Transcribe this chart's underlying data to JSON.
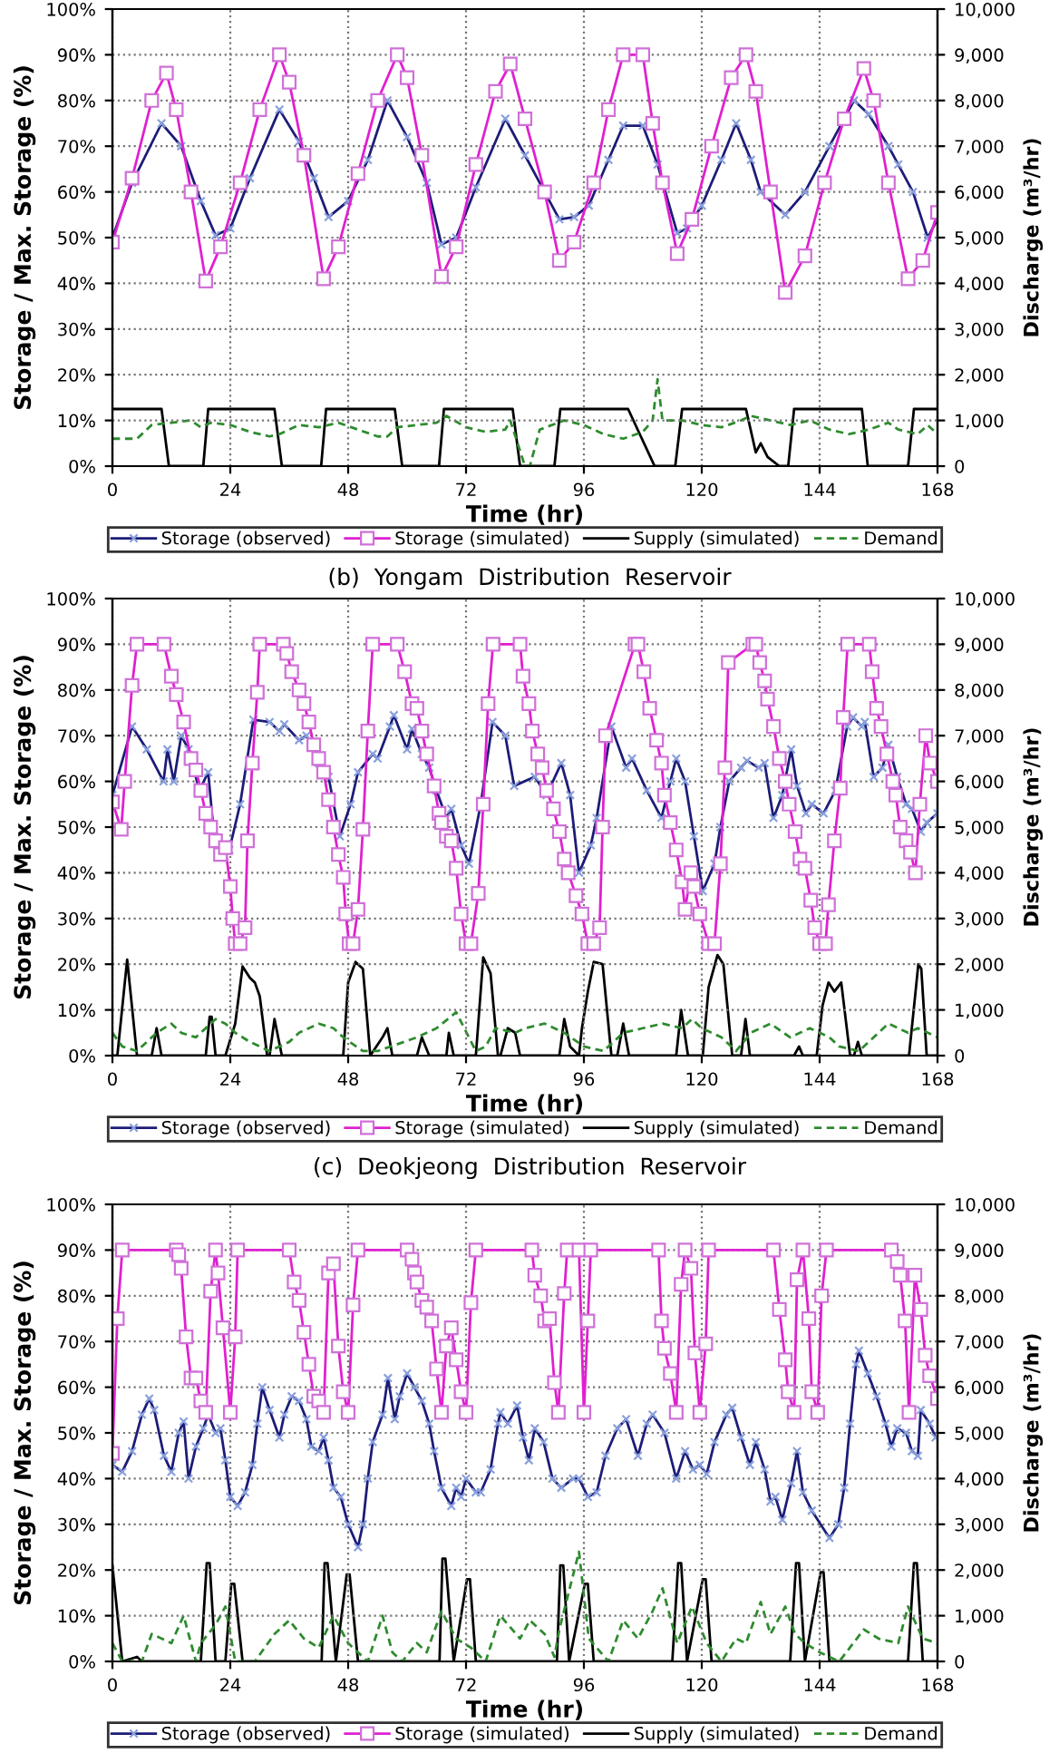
{
  "chart_data": [
    {
      "type": "line",
      "xlabel": "Time (hr)",
      "ylabel": "Storage / Max. Storage (%)",
      "y2label": "Discharge (m³/hr)",
      "xlim": [
        0,
        168
      ],
      "xticks": [
        0,
        24,
        48,
        72,
        96,
        120,
        144,
        168
      ],
      "ylim": [
        0,
        100
      ],
      "yticks": [
        {
          "value": 0,
          "label": "0%"
        },
        {
          "value": 10,
          "label": "10%"
        },
        {
          "value": 20,
          "label": "20%"
        },
        {
          "value": 30,
          "label": "30%"
        },
        {
          "value": 40,
          "label": "40%"
        },
        {
          "value": 50,
          "label": "50%"
        },
        {
          "value": 60,
          "label": "60%"
        },
        {
          "value": 70,
          "label": "70%"
        },
        {
          "value": 80,
          "label": "80%"
        },
        {
          "value": 90,
          "label": "90%"
        },
        {
          "value": 100,
          "label": "100%"
        }
      ],
      "y2lim": [
        0,
        10000
      ],
      "y2ticks": [
        0,
        {
          "value": 1000,
          "label": "1,000"
        },
        {
          "value": 2000,
          "label": "2,000"
        },
        {
          "value": 3000,
          "label": "3,000"
        },
        {
          "value": 4000,
          "label": "4,000"
        },
        {
          "value": 5000,
          "label": "5,000"
        },
        {
          "value": 6000,
          "label": "6,000"
        },
        {
          "value": 7000,
          "label": "7,000"
        },
        {
          "value": 8000,
          "label": "8,000"
        },
        {
          "value": 9000,
          "label": "9,000"
        },
        {
          "value": 10000,
          "label": "10,000"
        }
      ],
      "grid": true,
      "legend": "bottom",
      "annotations": [
        "(b)  Yongam  Distribution  Reservoir"
      ],
      "series": [
        {
          "name": "Storage (observed)",
          "color": "#1c1c78",
          "marker": "cross",
          "line_style": "solid",
          "x": [
            0,
            4,
            10,
            14,
            18,
            21,
            24,
            28,
            34,
            38,
            41,
            44,
            48,
            52,
            56,
            60,
            64,
            67,
            70,
            74,
            80,
            84,
            88,
            91,
            94,
            97,
            101,
            104,
            108,
            111,
            115,
            117,
            120,
            124,
            127,
            130,
            132,
            137,
            141,
            146,
            151,
            154,
            158,
            160,
            163,
            166,
            168
          ],
          "values": [
            50,
            62,
            75,
            70,
            58,
            50.5,
            52,
            63,
            78,
            71,
            63,
            54.5,
            58,
            67,
            80,
            72,
            62,
            48.5,
            50,
            61,
            76,
            68,
            60,
            54,
            54.5,
            57,
            67,
            74.5,
            74.5,
            66,
            51,
            52,
            57,
            67,
            75,
            67,
            60,
            55,
            60,
            70,
            80,
            77,
            70,
            66,
            60,
            50,
            54
          ]
        },
        {
          "name": "Storage (simulated)",
          "color": "#e020d0",
          "marker": "square",
          "line_style": "solid",
          "x": [
            0,
            4,
            8,
            11,
            13,
            16,
            19,
            22,
            26,
            30,
            34,
            36,
            39,
            43,
            46,
            50,
            54,
            58,
            60,
            63,
            67,
            70,
            74,
            78,
            81,
            84,
            88,
            91,
            94,
            98,
            101,
            104,
            108,
            110,
            112,
            115,
            118,
            122,
            126,
            129,
            131,
            134,
            137,
            141,
            145,
            149,
            153,
            155,
            158,
            162,
            165,
            168
          ],
          "values": [
            49,
            63,
            80,
            86,
            78,
            60,
            40.5,
            48,
            62,
            78,
            90,
            84,
            68,
            41,
            48,
            64,
            80,
            90,
            85,
            68,
            41.5,
            48,
            66,
            82,
            88,
            76,
            60,
            45,
            49,
            62,
            78,
            90,
            90,
            75,
            62,
            46.5,
            54,
            70,
            85,
            90,
            82,
            60,
            38,
            46,
            62,
            76,
            87,
            80,
            62,
            41,
            45,
            55.5
          ]
        },
        {
          "name": "Supply (simulated)",
          "color": "#000000",
          "marker": "none",
          "line_style": "solid",
          "axis": "y2",
          "x": [
            0,
            10,
            11.5,
            18.5,
            19.5,
            33,
            34.5,
            42.5,
            43.5,
            57.5,
            59,
            66.5,
            67.5,
            81.5,
            83,
            90,
            91.2,
            105,
            110.4,
            114.6,
            116,
            129,
            131,
            132,
            133.4,
            135.8,
            137.6,
            138.8,
            152.6,
            153.8,
            162,
            163.2,
            168
          ],
          "values": [
            1250,
            1250,
            0,
            0,
            1250,
            1250,
            0,
            0,
            1250,
            1250,
            0,
            0,
            1250,
            1250,
            0,
            0,
            1250,
            1250,
            0,
            0,
            1250,
            1250,
            300,
            500,
            200,
            0,
            0,
            1250,
            1250,
            0,
            0,
            1250,
            1250
          ]
        },
        {
          "name": "Demand",
          "color": "#2e8b2e",
          "marker": "none",
          "line_style": "dashed",
          "axis": "y2",
          "x": [
            0,
            5,
            8,
            12,
            16,
            18,
            20,
            24,
            28,
            32,
            34,
            38,
            42,
            46,
            50,
            54,
            56,
            58,
            62,
            66,
            68,
            72,
            76,
            80,
            81,
            84,
            85,
            87,
            92,
            96,
            100,
            104,
            108,
            110,
            111,
            112,
            116,
            120,
            124,
            128,
            130,
            134,
            138,
            142,
            146,
            150,
            154,
            158,
            160,
            164,
            166,
            168
          ],
          "values": [
            600,
            600,
            900,
            950,
            1000,
            850,
            950,
            900,
            750,
            650,
            700,
            900,
            850,
            950,
            800,
            650,
            650,
            850,
            900,
            950,
            1100,
            850,
            750,
            800,
            1000,
            0,
            0,
            800,
            1000,
            900,
            700,
            600,
            750,
            1000,
            1900,
            1000,
            1000,
            900,
            850,
            1000,
            1100,
            1000,
            900,
            1000,
            800,
            700,
            800,
            950,
            800,
            700,
            900,
            700
          ]
        }
      ]
    },
    {
      "type": "line",
      "xlabel": "Time (hr)",
      "ylabel": "Storage / Max. Storage (%)",
      "y2label": "Discharge (m³/hr)",
      "xlim": [
        0,
        168
      ],
      "xticks": [
        0,
        24,
        48,
        72,
        96,
        120,
        144,
        168
      ],
      "ylim": [
        0,
        100
      ],
      "yticks": [
        {
          "value": 0,
          "label": "0%"
        },
        {
          "value": 10,
          "label": "10%"
        },
        {
          "value": 20,
          "label": "20%"
        },
        {
          "value": 30,
          "label": "30%"
        },
        {
          "value": 40,
          "label": "40%"
        },
        {
          "value": 50,
          "label": "50%"
        },
        {
          "value": 60,
          "label": "60%"
        },
        {
          "value": 70,
          "label": "70%"
        },
        {
          "value": 80,
          "label": "80%"
        },
        {
          "value": 90,
          "label": "90%"
        },
        {
          "value": 100,
          "label": "100%"
        }
      ],
      "y2lim": [
        0,
        10000
      ],
      "y2ticks": [
        0,
        {
          "value": 1000,
          "label": "1,000"
        },
        {
          "value": 2000,
          "label": "2,000"
        },
        {
          "value": 3000,
          "label": "3,000"
        },
        {
          "value": 4000,
          "label": "4,000"
        },
        {
          "value": 5000,
          "label": "5,000"
        },
        {
          "value": 6000,
          "label": "6,000"
        },
        {
          "value": 7000,
          "label": "7,000"
        },
        {
          "value": 8000,
          "label": "8,000"
        },
        {
          "value": 9000,
          "label": "9,000"
        },
        {
          "value": 10000,
          "label": "10,000"
        }
      ],
      "grid": true,
      "legend": "bottom",
      "annotations": [
        "(c)  Deokjeong  Distribution  Reservoir"
      ],
      "series": [
        {
          "name": "Storage (observed)",
          "color": "#1c1c78",
          "marker": "cross",
          "line_style": "solid",
          "x": [
            0,
            4,
            7,
            10.4,
            11.2,
            12.5,
            14,
            15.5,
            17.7,
            19.5,
            20.7,
            23.8,
            26,
            28.7,
            32,
            34,
            35,
            38,
            39.5,
            42,
            44,
            46.3,
            48.5,
            50,
            53,
            54,
            56.5,
            57.3,
            60,
            61,
            63,
            64.5,
            66,
            68,
            69,
            71,
            72.6,
            75,
            77.4,
            80,
            81.8,
            86,
            88.4,
            91.4,
            93.2,
            95,
            97.4,
            98.6,
            101.6,
            104.6,
            105.8,
            108.8,
            111.8,
            113.6,
            114.8,
            116.6,
            118.4,
            120.2,
            122.6,
            123.8,
            125.6,
            128,
            129.2,
            131.6,
            132.8,
            134.6,
            136.4,
            138.2,
            139.4,
            141.2,
            142.4,
            144.8,
            147.2,
            149.6,
            150.8,
            152.6,
            153.2,
            155,
            156.8,
            158,
            159.8,
            161.6,
            162.8,
            164.6,
            165.8,
            168
          ],
          "values": [
            57,
            72,
            67,
            60,
            67,
            60,
            70,
            67,
            58,
            62,
            48,
            45,
            55,
            73.5,
            73,
            71,
            72.5,
            69,
            70,
            64,
            61,
            48,
            55,
            62,
            66,
            65,
            72,
            74.5,
            67,
            71.5,
            66,
            63,
            58,
            52,
            54,
            46,
            42,
            55,
            73,
            70,
            59,
            61,
            57,
            64,
            57,
            40,
            46,
            52,
            72,
            63,
            65,
            58,
            52,
            60,
            65,
            60,
            48,
            36,
            42,
            50,
            60,
            63,
            64.5,
            63,
            64,
            52,
            57,
            67,
            59,
            53,
            55,
            53,
            58,
            72,
            74,
            72,
            73,
            61,
            63,
            68,
            61,
            55,
            54,
            49,
            51,
            53
          ]
        },
        {
          "name": "Storage (simulated)",
          "color": "#e020d0",
          "marker": "square",
          "line_style": "solid",
          "x": [
            0,
            1.8,
            2.5,
            4,
            5,
            10.5,
            12,
            13,
            14.5,
            16,
            17,
            18,
            19,
            20,
            21,
            22,
            23,
            24,
            24.5,
            25,
            26,
            27,
            27.5,
            28.5,
            29.5,
            30,
            34.8,
            35.5,
            36.5,
            38,
            39,
            40,
            41,
            42,
            43,
            44,
            45,
            46,
            47,
            47.5,
            48.2,
            49,
            50,
            51,
            52,
            53,
            58,
            59.5,
            61,
            62,
            63,
            64,
            65.5,
            66.5,
            67,
            68,
            69,
            70,
            71,
            72,
            73,
            74.5,
            75.5,
            76.5,
            77.5,
            83,
            83.6,
            84.8,
            85.5,
            86.6,
            87.5,
            88.4,
            89.8,
            91,
            92,
            92.8,
            94.4,
            95.6,
            96.8,
            98,
            99.2,
            99.8,
            100.4,
            106.4,
            107,
            108.2,
            109.4,
            110.8,
            111.8,
            112.4,
            113.6,
            114.8,
            116,
            116.6,
            117.8,
            118.4,
            119.6,
            121.4,
            122.6,
            123.8,
            124.7,
            125.4,
            130.4,
            131,
            131.8,
            132.8,
            133.4,
            134.6,
            135.8,
            137,
            137.8,
            139,
            140,
            141,
            142.2,
            143,
            144,
            145.2,
            145.8,
            147,
            148.2,
            148.8,
            149.7,
            154.1,
            154.7,
            155.6,
            156.5,
            157.7,
            158.9,
            159.5,
            160.4,
            161.6,
            162.5,
            163.5,
            164.4,
            165.6,
            166.5,
            168
          ],
          "values": [
            55.5,
            49.5,
            60,
            81,
            90,
            90,
            83,
            79,
            73,
            65,
            62.5,
            58,
            53,
            50,
            47,
            44,
            45.5,
            37,
            30,
            24.5,
            24.5,
            28,
            47,
            64,
            79.5,
            90,
            90,
            88,
            84,
            80,
            77,
            73,
            68,
            65,
            62,
            56,
            50,
            44,
            39,
            31,
            24.5,
            24.5,
            32,
            49.5,
            71,
            90,
            90,
            84,
            77,
            76,
            71,
            66,
            59,
            53,
            51,
            48,
            47,
            41,
            31,
            24.5,
            24.5,
            35.5,
            55,
            77,
            90,
            90,
            83,
            77,
            71,
            66,
            63,
            58,
            54,
            49,
            43,
            40,
            35,
            31,
            24.5,
            24.5,
            28,
            50,
            70,
            90,
            90,
            84,
            76,
            69,
            64,
            57,
            51,
            45,
            38,
            32,
            40,
            37,
            31,
            24.5,
            24.5,
            42,
            63,
            86,
            90,
            90,
            86,
            82,
            78,
            72,
            65,
            60,
            55,
            49,
            43,
            41,
            34,
            28,
            24.5,
            24.5,
            33,
            47,
            58.5,
            74,
            90,
            90,
            84,
            76,
            72,
            66,
            60,
            57,
            50,
            47,
            44.5,
            40,
            55,
            70,
            64,
            60
          ]
        },
        {
          "name": "Supply (simulated)",
          "color": "#000000",
          "marker": "none",
          "line_style": "solid",
          "axis": "y2",
          "x": [
            0,
            1,
            3,
            5,
            8,
            9,
            10,
            19,
            19.8,
            20.2,
            21,
            23,
            25,
            26.5,
            28,
            29,
            30,
            31.5,
            32,
            33,
            34.5,
            47,
            48,
            49.5,
            51,
            52.5,
            55,
            56,
            57,
            62,
            63,
            64.5,
            68,
            68.5,
            69.5,
            74,
            75.5,
            77,
            78.5,
            79,
            80.5,
            82,
            83,
            91,
            92,
            93.2,
            95,
            95.6,
            96.8,
            98,
            99.8,
            101.6,
            102.8,
            104,
            105.2,
            114.8,
            115.8,
            117.2,
            120.2,
            121.4,
            123.2,
            124.4,
            126.2,
            128,
            128.9,
            129.8,
            138.8,
            139.8,
            140.6,
            143.4,
            144.6,
            145.8,
            147,
            148.4,
            150.2,
            151,
            151.8,
            152.6,
            162.2,
            164.1,
            164.7,
            165.8,
            168
          ],
          "values": [
            0,
            0,
            2100,
            0,
            0,
            600,
            0,
            0,
            850,
            850,
            0,
            0,
            700,
            1950,
            1700,
            1600,
            1300,
            0,
            0,
            800,
            0,
            0,
            1600,
            2050,
            1900,
            0,
            400,
            600,
            0,
            0,
            400,
            0,
            0,
            500,
            0,
            0,
            2150,
            1800,
            0,
            0,
            600,
            500,
            0,
            0,
            800,
            200,
            0,
            600,
            1400,
            2050,
            2000,
            0,
            0,
            700,
            0,
            0,
            1000,
            0,
            0,
            1500,
            2200,
            2000,
            0,
            0,
            800,
            0,
            0,
            200,
            0,
            0,
            1100,
            1600,
            1400,
            1600,
            0,
            0,
            300,
            0,
            0,
            2000,
            1900,
            0,
            0
          ]
        },
        {
          "name": "Demand",
          "color": "#2e8b2e",
          "marker": "none",
          "line_style": "dashed",
          "axis": "y2",
          "x": [
            0,
            2,
            5,
            7,
            9,
            12,
            14,
            17,
            21,
            23,
            25,
            28,
            32,
            36,
            38,
            42,
            45,
            47,
            51,
            54,
            62,
            66,
            70,
            74,
            76,
            78,
            82,
            84,
            88,
            92,
            96,
            100,
            104,
            108,
            112,
            116,
            118,
            120,
            124,
            127,
            130,
            134,
            138,
            140,
            142,
            146,
            148,
            152,
            156,
            158,
            162,
            164,
            168
          ],
          "values": [
            500,
            200,
            100,
            300,
            500,
            700,
            500,
            400,
            800,
            700,
            500,
            300,
            100,
            300,
            500,
            700,
            600,
            400,
            100,
            100,
            400,
            600,
            950,
            100,
            200,
            600,
            500,
            600,
            700,
            500,
            200,
            100,
            500,
            600,
            700,
            600,
            800,
            600,
            400,
            100,
            500,
            700,
            400,
            500,
            600,
            400,
            200,
            100,
            500,
            700,
            500,
            600,
            400
          ]
        }
      ]
    },
    {
      "type": "line",
      "xlabel": "Time (hr)",
      "ylabel": "Storage / Max. Storage (%)",
      "y2label": "Discharge (m³/hr)",
      "xlim": [
        0,
        168
      ],
      "xticks": [
        0,
        24,
        48,
        72,
        96,
        120,
        144,
        168
      ],
      "ylim": [
        0,
        100
      ],
      "yticks": [
        {
          "value": 0,
          "label": "0%"
        },
        {
          "value": 10,
          "label": "10%"
        },
        {
          "value": 20,
          "label": "20%"
        },
        {
          "value": 30,
          "label": "30%"
        },
        {
          "value": 40,
          "label": "40%"
        },
        {
          "value": 50,
          "label": "50%"
        },
        {
          "value": 60,
          "label": "60%"
        },
        {
          "value": 70,
          "label": "70%"
        },
        {
          "value": 80,
          "label": "80%"
        },
        {
          "value": 90,
          "label": "90%"
        },
        {
          "value": 100,
          "label": "100%"
        }
      ],
      "y2lim": [
        0,
        10000
      ],
      "y2ticks": [
        0,
        {
          "value": 1000,
          "label": "1,000"
        },
        {
          "value": 2000,
          "label": "2,000"
        },
        {
          "value": 3000,
          "label": "3,000"
        },
        {
          "value": 4000,
          "label": "4,000"
        },
        {
          "value": 5000,
          "label": "5,000"
        },
        {
          "value": 6000,
          "label": "6,000"
        },
        {
          "value": 7000,
          "label": "7,000"
        },
        {
          "value": 8000,
          "label": "8,000"
        },
        {
          "value": 9000,
          "label": "9,000"
        },
        {
          "value": 10000,
          "label": "10,000"
        }
      ],
      "grid": true,
      "legend": "bottom",
      "series": [
        {
          "name": "Storage (observed)",
          "color": "#1c1c78",
          "marker": "cross",
          "line_style": "solid",
          "x": [
            0,
            2,
            4,
            6,
            7.5,
            8.5,
            10.5,
            12,
            13.5,
            14.5,
            15.5,
            17,
            18.5,
            19.5,
            21,
            22,
            23,
            24,
            25.5,
            27,
            28.5,
            29.5,
            30.5,
            32,
            34,
            35,
            36.5,
            38,
            39.5,
            40.5,
            42,
            43,
            44,
            45,
            46.5,
            48,
            50,
            51,
            52,
            53,
            55,
            56.1,
            57.5,
            58.5,
            60,
            61.5,
            63,
            64.5,
            65.5,
            67,
            69,
            70,
            71,
            72,
            74,
            75,
            77,
            78.5,
            79,
            80.5,
            82.4,
            83.6,
            84.8,
            86,
            87.8,
            89.6,
            91.4,
            93.8,
            95,
            96.8,
            98.6,
            100.4,
            102.8,
            104.6,
            107,
            108.8,
            110,
            112.4,
            114.8,
            116.6,
            118.2,
            119.6,
            121,
            122.6,
            125,
            126.2,
            128,
            129.8,
            131,
            132.8,
            134,
            135,
            136.4,
            138.2,
            139.4,
            140.6,
            142.4,
            146,
            147.8,
            149,
            150.2,
            151.4,
            152,
            153.8,
            155.6,
            157.4,
            158.6,
            159.8,
            161.6,
            162.8,
            164,
            164.6,
            166.4,
            167.6
          ],
          "values": [
            43,
            41.5,
            46,
            54,
            57.5,
            55,
            45,
            41.5,
            50,
            52.5,
            40,
            47,
            51,
            54,
            50,
            51,
            44,
            36,
            34,
            37,
            43,
            52,
            60,
            55,
            49,
            54,
            58,
            57,
            53,
            47,
            46,
            49,
            44,
            38,
            36,
            30,
            25,
            30,
            40,
            48,
            54,
            62,
            53,
            58,
            63,
            60,
            57,
            52,
            46,
            38,
            34,
            38,
            36,
            40,
            37,
            37,
            42,
            52,
            54.5,
            52,
            56,
            49,
            44,
            51,
            48,
            40,
            38,
            40,
            40,
            36,
            37,
            45,
            51,
            53,
            45,
            52,
            54,
            50,
            40,
            46,
            42,
            43,
            41,
            48,
            54,
            55.5,
            49,
            43,
            48,
            42,
            35,
            36,
            31,
            39,
            46,
            37,
            33,
            27,
            30,
            38,
            52,
            65,
            68,
            63,
            58,
            52,
            47,
            51,
            50,
            46,
            45,
            55,
            52,
            49
          ]
        },
        {
          "name": "Storage (simulated)",
          "color": "#e020d0",
          "marker": "square",
          "line_style": "solid",
          "x": [
            0,
            1,
            2,
            13,
            13.5,
            14,
            15,
            16,
            17,
            18,
            19,
            20,
            21,
            21.5,
            22.5,
            24,
            25,
            25.5,
            36,
            37,
            38,
            39,
            40,
            41,
            42,
            43,
            44,
            45,
            46,
            47,
            48,
            49,
            50,
            60,
            61,
            61.5,
            62,
            63,
            64,
            65,
            66,
            67,
            68,
            69,
            70,
            71,
            72,
            73,
            74,
            85.4,
            86,
            87.2,
            88,
            89,
            90,
            90.8,
            92,
            92.6,
            95,
            96,
            96.8,
            97.4,
            111.2,
            111.8,
            112.4,
            113.6,
            114.8,
            115.8,
            116.6,
            117.8,
            118.6,
            119.6,
            120.8,
            121.4,
            134.6,
            135.8,
            137,
            137.6,
            138.8,
            139.4,
            140.6,
            141.8,
            142.4,
            143.6,
            144.4,
            145.4,
            158.6,
            159.8,
            160.4,
            161.4,
            162.2,
            163.4,
            164.6,
            165.5,
            166.4,
            168
          ],
          "values": [
            45.5,
            75,
            90,
            90,
            89,
            86,
            71,
            62,
            62,
            57,
            54.5,
            81,
            90,
            85,
            73,
            54.5,
            71,
            90,
            90,
            83,
            79,
            72,
            65,
            58,
            57,
            54.5,
            85,
            87,
            69,
            59,
            54.5,
            78,
            90,
            90,
            88,
            85,
            83,
            79,
            77.5,
            74.5,
            64,
            54.5,
            69,
            73,
            66,
            59,
            54.5,
            78.5,
            90,
            90,
            84.5,
            80,
            74.5,
            75,
            61,
            54.5,
            80.5,
            90,
            90,
            54.5,
            74.5,
            90,
            90,
            74.5,
            68.5,
            63,
            54.5,
            82.5,
            90,
            86,
            67.5,
            54.5,
            69.5,
            90,
            90,
            77,
            66,
            59,
            54.5,
            83.5,
            90,
            75,
            59,
            54.5,
            80,
            90,
            90,
            87.5,
            84.5,
            74.5,
            54.5,
            84.5,
            77,
            67,
            62.5,
            57.5
          ]
        },
        {
          "name": "Supply (simulated)",
          "color": "#000000",
          "marker": "none",
          "line_style": "solid",
          "axis": "y2",
          "x": [
            0,
            2,
            5,
            6,
            18,
            19.2,
            19.8,
            21,
            23,
            24.2,
            24.8,
            26.5,
            42.6,
            43.2,
            43.8,
            45.5,
            47.7,
            48.3,
            50,
            66.6,
            67.2,
            67.8,
            69.5,
            72.2,
            72.8,
            74,
            90.5,
            91.2,
            91.8,
            93,
            96.2,
            96.8,
            98,
            114,
            115.2,
            115.8,
            117,
            120.2,
            120.8,
            122,
            138,
            139.2,
            139.8,
            141,
            144.2,
            144.8,
            146,
            162,
            163.2,
            163.8,
            165,
            168
          ],
          "values": [
            2100,
            0,
            100,
            0,
            0,
            2150,
            2150,
            0,
            0,
            1700,
            1700,
            0,
            0,
            2150,
            2150,
            0,
            1900,
            1900,
            0,
            0,
            2250,
            2250,
            0,
            1800,
            1800,
            0,
            0,
            2100,
            2100,
            0,
            1700,
            1700,
            0,
            0,
            2150,
            2150,
            0,
            1800,
            1800,
            0,
            0,
            2150,
            2150,
            0,
            1950,
            1950,
            0,
            0,
            2150,
            2150,
            0,
            0
          ]
        },
        {
          "name": "Demand",
          "color": "#2e8b2e",
          "marker": "none",
          "line_style": "dashed",
          "axis": "y2",
          "x": [
            0,
            2,
            6,
            8,
            10,
            12,
            14.5,
            17,
            18,
            21,
            23,
            25,
            29,
            33,
            36,
            39,
            42,
            45,
            48,
            52,
            55,
            57,
            59,
            62,
            64,
            67,
            70,
            73,
            76,
            79,
            83,
            85,
            88,
            90,
            91,
            95,
            97,
            101,
            104,
            107,
            110,
            112,
            115,
            118,
            121,
            124,
            127,
            129,
            132,
            134,
            137,
            139,
            141,
            144,
            148,
            153,
            156,
            160,
            162,
            165,
            168
          ],
          "values": [
            400,
            0,
            0,
            600,
            500,
            400,
            1000,
            0,
            400,
            800,
            1200,
            0,
            0,
            600,
            900,
            500,
            300,
            1000,
            400,
            0,
            1000,
            200,
            0,
            400,
            200,
            1100,
            500,
            300,
            0,
            1000,
            500,
            900,
            600,
            100,
            700,
            2400,
            500,
            0,
            900,
            500,
            1100,
            1600,
            400,
            1200,
            400,
            0,
            500,
            400,
            1300,
            600,
            1200,
            600,
            400,
            200,
            0,
            700,
            500,
            400,
            1200,
            500,
            400
          ]
        }
      ]
    }
  ]
}
